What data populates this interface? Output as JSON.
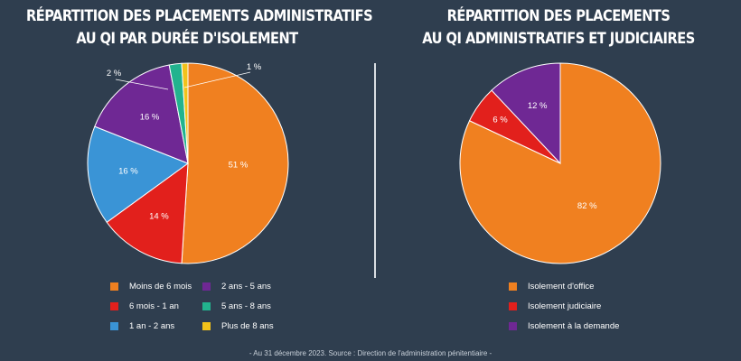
{
  "footer": "- Au 31 décembre 2023. Source : Direction de l'administration pénitentiaire -",
  "chart_data": [
    {
      "type": "pie",
      "title": [
        "RÉPARTITION DES PLACEMENTS ADMINISTRATIFS",
        "AU QI PAR DURÉE D'ISOLEMENT"
      ],
      "legend_position": "bottom",
      "slices": [
        {
          "label": "Moins de 6 mois",
          "value": 51,
          "text": "51 %",
          "color": "#f08020"
        },
        {
          "label": "6 mois - 1 an",
          "value": 14,
          "text": "14 %",
          "color": "#e2201c"
        },
        {
          "label": "1 an - 2 ans",
          "value": 16,
          "text": "16 %",
          "color": "#3a94d6"
        },
        {
          "label": "2 ans - 5 ans",
          "value": 16,
          "text": "16 %",
          "color": "#6f2894"
        },
        {
          "label": "5 ans - 8 ans",
          "value": 2,
          "text": "2 %",
          "color": "#22b38e"
        },
        {
          "label": "Plus de 8 ans",
          "value": 1,
          "text": "1 %",
          "color": "#f2c21a"
        }
      ]
    },
    {
      "type": "pie",
      "title": [
        "RÉPARTITION DES PLACEMENTS",
        "AU QI ADMINISTRATIFS ET JUDICIAIRES"
      ],
      "legend_position": "bottom",
      "slices": [
        {
          "label": "Isolement d'office",
          "value": 82,
          "text": "82 %",
          "color": "#f08020"
        },
        {
          "label": "Isolement judiciaire",
          "value": 6,
          "text": "6 %",
          "color": "#e2201c"
        },
        {
          "label": "Isolement à la demande",
          "value": 12,
          "text": "12 %",
          "color": "#6f2894"
        }
      ]
    }
  ]
}
